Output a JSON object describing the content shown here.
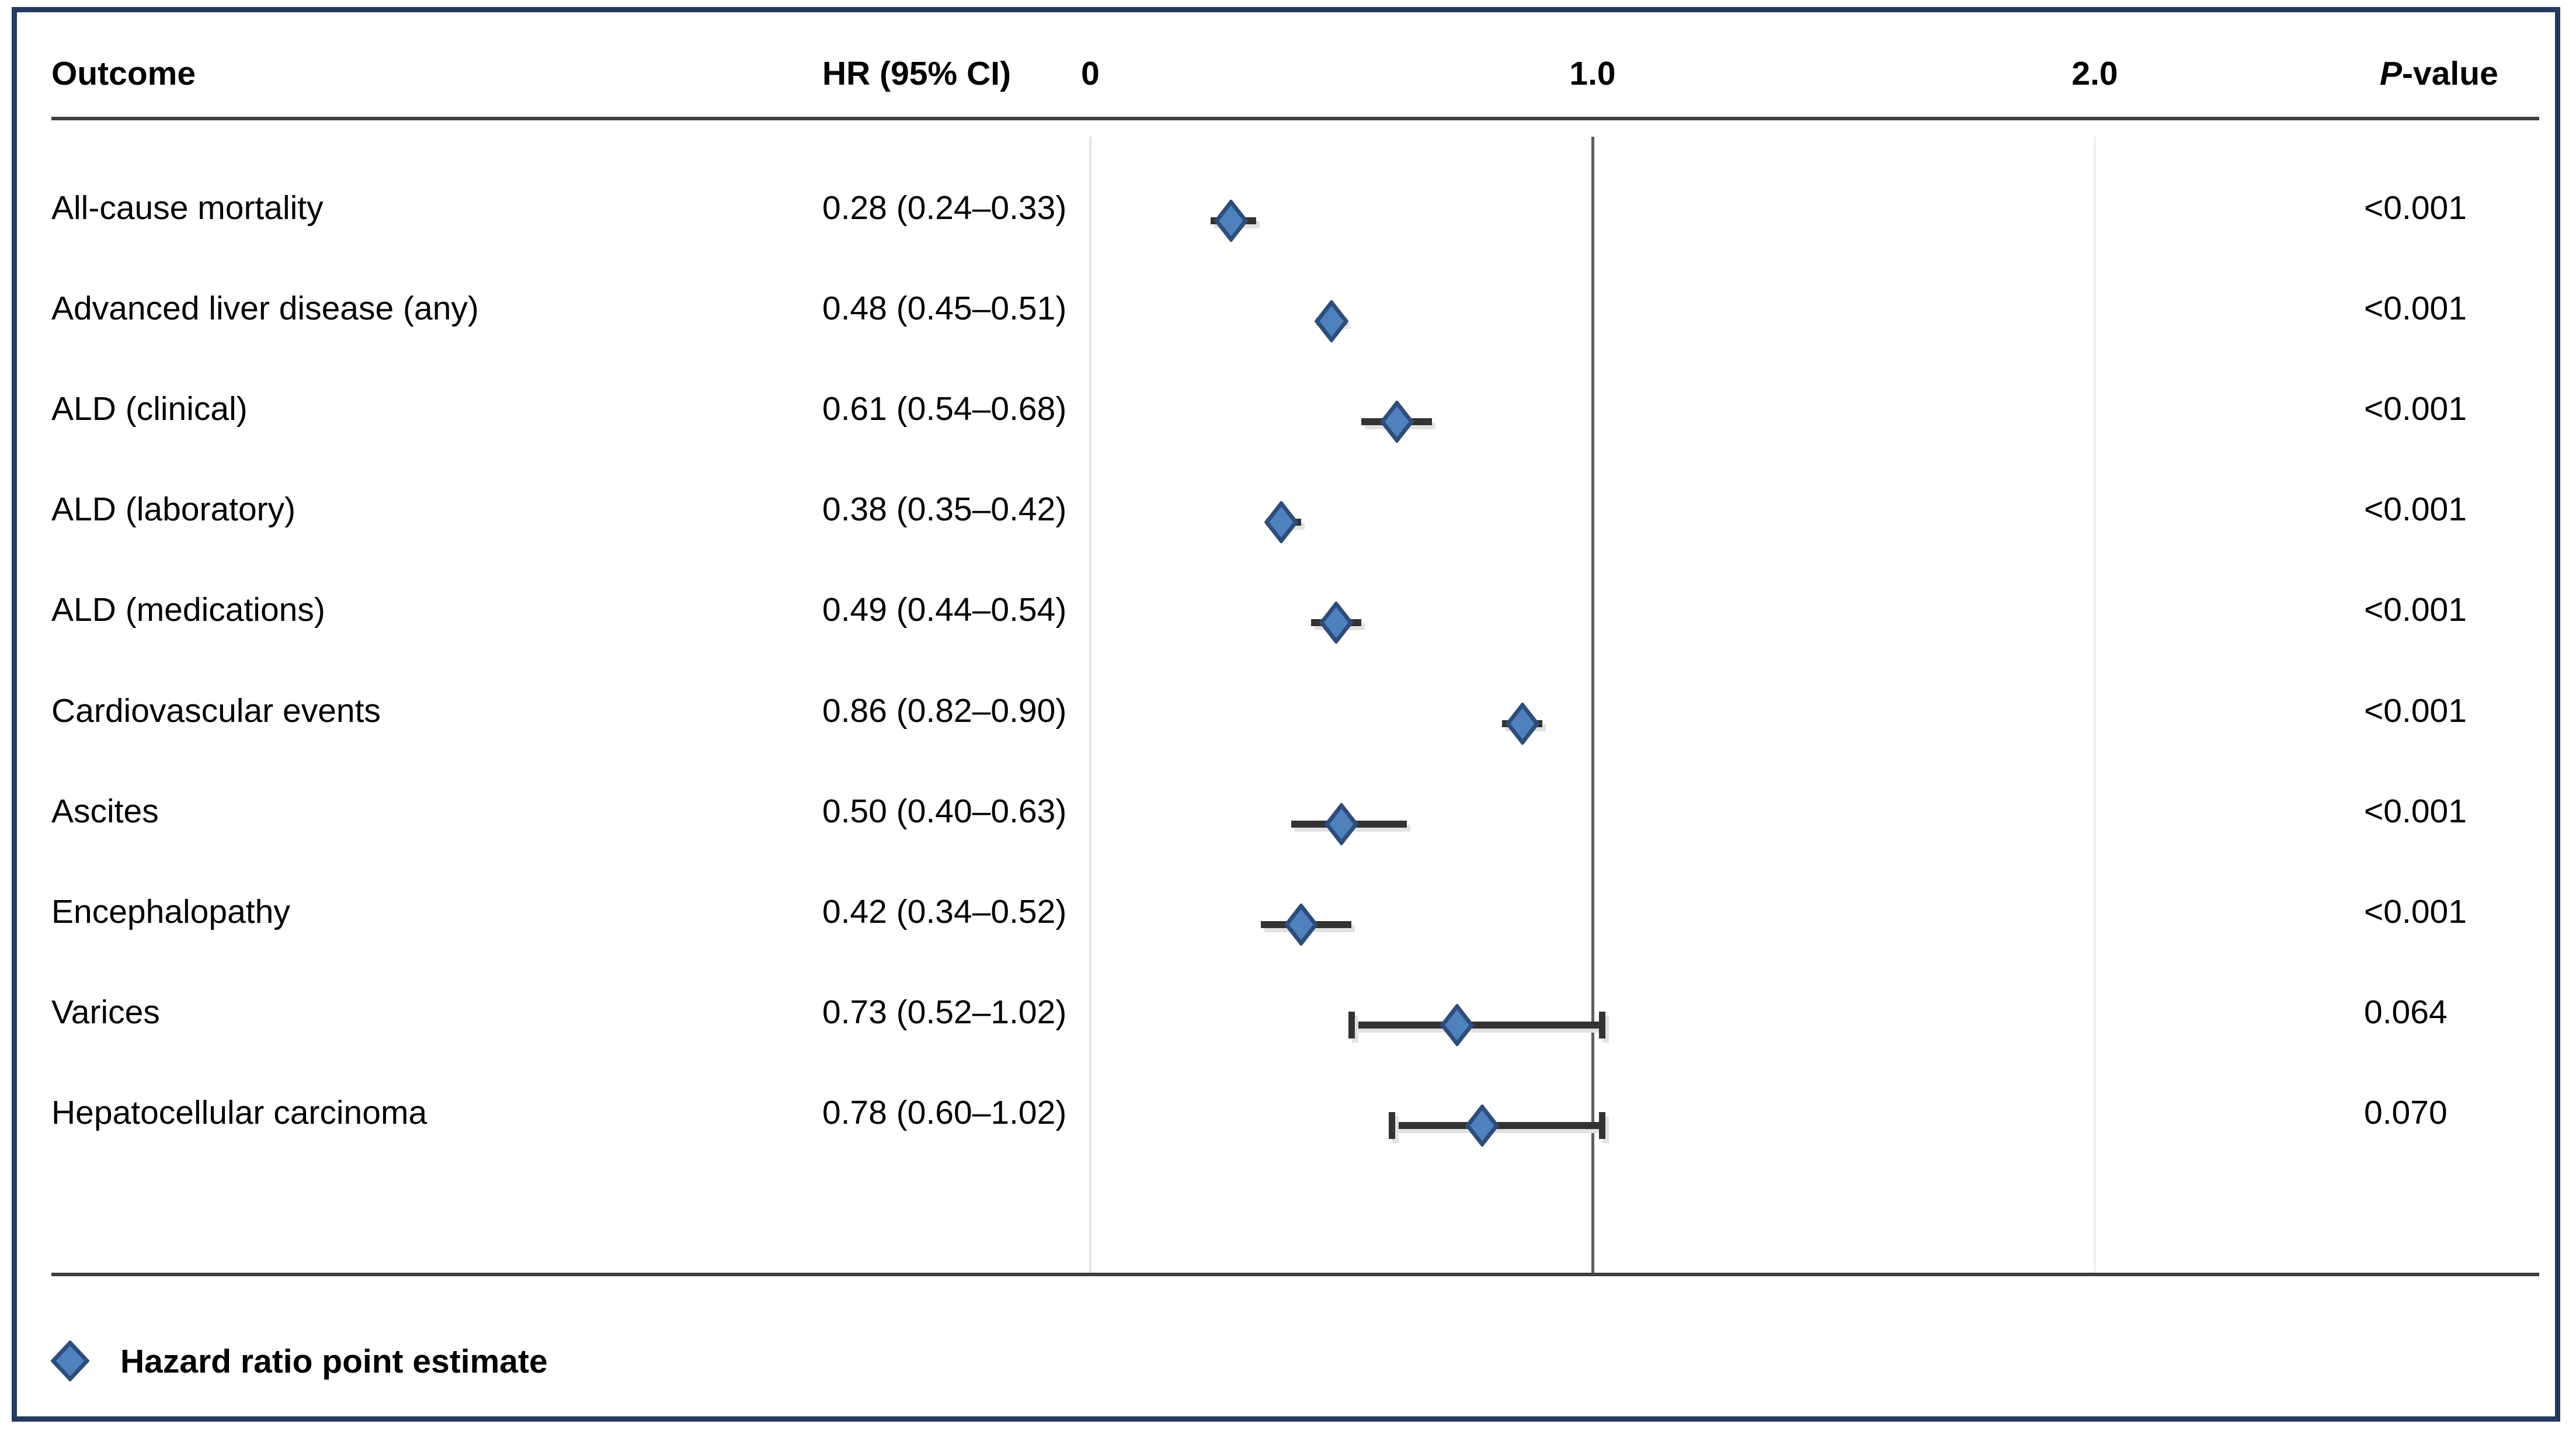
{
  "figure": {
    "header": {
      "outcome": "Outcome",
      "hr_ci": "HR (95% CI)",
      "p_italic": "P",
      "p_rest": "-value"
    },
    "axis": {
      "ticks": [
        {
          "label": "0",
          "value": 0,
          "line": "light"
        },
        {
          "label": "1.0",
          "value": 1,
          "line": "ref"
        },
        {
          "label": "2.0",
          "value": 2,
          "line": "lighter"
        }
      ],
      "ref_line_value": 1.0
    },
    "rows": [
      {
        "outcome": "All-cause mortality",
        "hr_ci": "0.28 (0.24–0.33)",
        "hr": 0.28,
        "ci_low": 0.24,
        "ci_high": 0.33,
        "p": "<0.001",
        "caps": false
      },
      {
        "outcome": "Advanced liver disease (any)",
        "hr_ci": "0.48 (0.45–0.51)",
        "hr": 0.48,
        "ci_low": 0.45,
        "ci_high": 0.51,
        "p": "<0.001",
        "caps": false
      },
      {
        "outcome": "ALD (clinical)",
        "hr_ci": "0.61 (0.54–0.68)",
        "hr": 0.61,
        "ci_low": 0.54,
        "ci_high": 0.68,
        "p": "<0.001",
        "caps": false
      },
      {
        "outcome": "ALD (laboratory)",
        "hr_ci": "0.38 (0.35–0.42)",
        "hr": 0.38,
        "ci_low": 0.35,
        "ci_high": 0.42,
        "p": "<0.001",
        "caps": false
      },
      {
        "outcome": "ALD (medications)",
        "hr_ci": "0.49 (0.44–0.54)",
        "hr": 0.49,
        "ci_low": 0.44,
        "ci_high": 0.54,
        "p": "<0.001",
        "caps": false
      },
      {
        "outcome": "Cardiovascular events",
        "hr_ci": "0.86 (0.82–0.90)",
        "hr": 0.86,
        "ci_low": 0.82,
        "ci_high": 0.9,
        "p": "<0.001",
        "caps": false
      },
      {
        "outcome": "Ascites",
        "hr_ci": "0.50 (0.40–0.63)",
        "hr": 0.5,
        "ci_low": 0.4,
        "ci_high": 0.63,
        "p": "<0.001",
        "caps": false
      },
      {
        "outcome": "Encephalopathy",
        "hr_ci": "0.42 (0.34–0.52)",
        "hr": 0.42,
        "ci_low": 0.34,
        "ci_high": 0.52,
        "p": "<0.001",
        "caps": false
      },
      {
        "outcome": "Varices",
        "hr_ci": "0.73 (0.52–1.02)",
        "hr": 0.73,
        "ci_low": 0.52,
        "ci_high": 1.02,
        "p": "0.064",
        "caps": true
      },
      {
        "outcome": "Hepatocellular carcinoma",
        "hr_ci": "0.78 (0.60–1.02)",
        "hr": 0.78,
        "ci_low": 0.6,
        "ci_high": 1.02,
        "p": "0.070",
        "caps": true
      }
    ],
    "legend": {
      "label": "Hazard ratio point estimate"
    },
    "colors": {
      "frame_border": "#243a5e",
      "marker_fill": "#4f81bd",
      "marker_stroke": "#2e4d7b",
      "bar": "#333333",
      "rule": "#3f3f3f",
      "grid_ref": "#5f5f5f",
      "grid_light": "#e4e4e4",
      "grid_lighter": "#f0f0f0"
    }
  },
  "chart_data": {
    "type": "scatter",
    "subtype": "forest-plot",
    "title": "",
    "categories": [
      "All-cause mortality",
      "Advanced liver disease (any)",
      "ALD (clinical)",
      "ALD (laboratory)",
      "ALD (medications)",
      "Cardiovascular events",
      "Ascites",
      "Encephalopathy",
      "Varices",
      "Hepatocellular carcinoma"
    ],
    "series": [
      {
        "name": "Hazard ratio",
        "values": [
          0.28,
          0.48,
          0.61,
          0.38,
          0.49,
          0.86,
          0.5,
          0.42,
          0.73,
          0.78
        ]
      },
      {
        "name": "95% CI lower",
        "values": [
          0.24,
          0.45,
          0.54,
          0.35,
          0.44,
          0.82,
          0.4,
          0.34,
          0.52,
          0.6
        ]
      },
      {
        "name": "95% CI upper",
        "values": [
          0.33,
          0.51,
          0.68,
          0.42,
          0.54,
          0.9,
          0.63,
          0.52,
          1.02,
          1.02
        ]
      }
    ],
    "p_values": [
      "<0.001",
      "<0.001",
      "<0.001",
      "<0.001",
      "<0.001",
      "<0.001",
      "<0.001",
      "<0.001",
      "0.064",
      "0.070"
    ],
    "xticks": [
      0,
      1.0,
      2.0
    ],
    "xtick_labels": [
      "0",
      "1.0",
      "2.0"
    ],
    "xlim": [
      0,
      2.6
    ],
    "ref_line": 1.0,
    "grid": "vertical gridlines at ticks only",
    "legend": [
      "Hazard ratio point estimate"
    ],
    "legend_position": "bottom-left"
  }
}
